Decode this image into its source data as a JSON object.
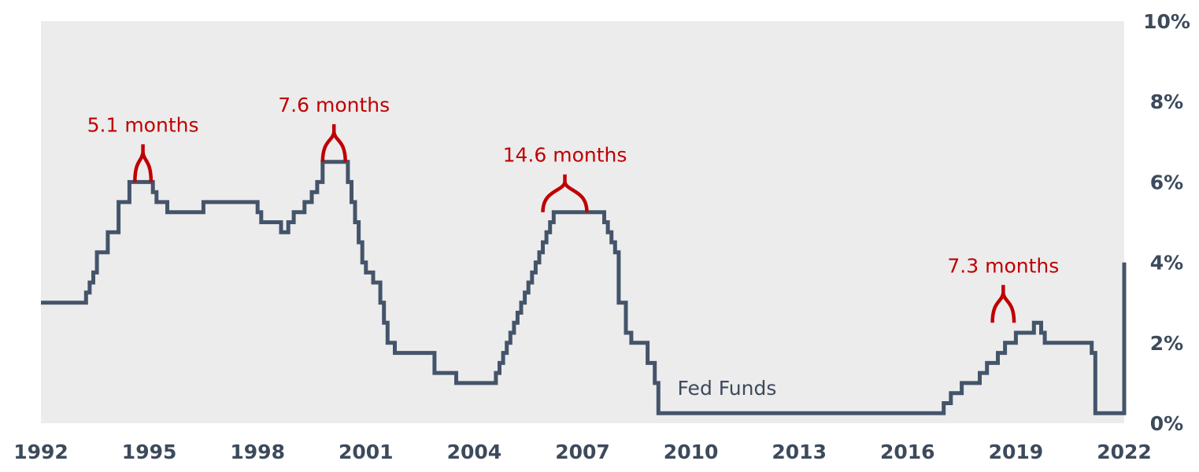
{
  "chart_data": {
    "type": "line",
    "line_shape": "step",
    "title": "",
    "xlabel": "",
    "ylabel": "",
    "xlim": [
      1992,
      2022
    ],
    "ylim": [
      0,
      10
    ],
    "x_ticks": [
      "1992",
      "1995",
      "1998",
      "2001",
      "2004",
      "2007",
      "2010",
      "2013",
      "2016",
      "2019",
      "2022"
    ],
    "y_ticks": [
      "0%",
      "2%",
      "4%",
      "6%",
      "8%",
      "10%"
    ],
    "y_axis_side": "right",
    "grid": false,
    "background": "#ececec",
    "series": [
      {
        "name": "Fed Funds",
        "color": "#44546a",
        "x": [
          1992.0,
          1993.25,
          1993.35,
          1993.45,
          1993.55,
          1993.85,
          1994.15,
          1994.45,
          1994.75,
          1995.1,
          1995.2,
          1995.5,
          1996.5,
          1997.9,
          1998.0,
          1998.1,
          1998.65,
          1998.85,
          1999.0,
          1999.3,
          1999.5,
          1999.65,
          1999.8,
          2000.4,
          2000.5,
          2000.6,
          2000.7,
          2000.8,
          2000.9,
          2001.0,
          2001.2,
          2001.4,
          2001.5,
          2001.6,
          2001.8,
          2002.9,
          2003.5,
          2004.5,
          2004.6,
          2004.7,
          2004.8,
          2004.9,
          2005.0,
          2005.1,
          2005.2,
          2005.3,
          2005.4,
          2005.5,
          2005.6,
          2005.7,
          2005.8,
          2005.9,
          2006.0,
          2006.1,
          2006.2,
          2006.3,
          2006.4,
          2006.5,
          2007.6,
          2007.7,
          2007.8,
          2007.9,
          2008.0,
          2008.2,
          2008.35,
          2008.5,
          2008.8,
          2009.0,
          2009.1,
          2016.0,
          2017.0,
          2017.2,
          2017.5,
          2018.0,
          2018.2,
          2018.5,
          2018.7,
          2019.0,
          2019.5,
          2019.6,
          2019.7,
          2019.8,
          2021.1,
          2021.2,
          2021.9,
          2022.0,
          2022.1,
          2022.2,
          2022.35,
          2022.5,
          2022.65,
          2022.75
        ],
        "y": [
          3.0,
          3.25,
          3.5,
          3.75,
          4.25,
          4.75,
          5.5,
          6.0,
          6.0,
          5.75,
          5.5,
          5.25,
          5.5,
          5.5,
          5.25,
          5.0,
          4.75,
          5.0,
          5.25,
          5.5,
          5.75,
          6.0,
          6.5,
          6.5,
          6.0,
          5.5,
          5.0,
          4.5,
          4.0,
          3.75,
          3.5,
          3.0,
          2.5,
          2.0,
          1.75,
          1.25,
          1.0,
          1.0,
          1.25,
          1.5,
          1.75,
          2.0,
          2.25,
          2.5,
          2.75,
          3.0,
          3.25,
          3.5,
          3.75,
          4.0,
          4.25,
          4.5,
          4.75,
          5.0,
          5.25,
          5.25,
          5.25,
          5.25,
          5.0,
          4.75,
          4.5,
          4.25,
          3.0,
          2.25,
          2.0,
          2.0,
          1.5,
          1.0,
          0.25,
          0.25,
          0.5,
          0.75,
          1.0,
          1.25,
          1.5,
          1.75,
          2.0,
          2.25,
          2.5,
          2.5,
          2.25,
          2.0,
          1.75,
          0.25,
          0.25,
          0.5,
          1.0,
          1.75,
          2.5,
          3.25,
          4.0,
          4.0
        ]
      }
    ],
    "series_label": {
      "text": "Fed Funds",
      "x": 2011.0,
      "y": 0.55
    },
    "annotations": [
      {
        "text": "5.1 months",
        "x_start": 1994.6,
        "x_end": 1995.05,
        "y": 6.0,
        "color": "#c00000"
      },
      {
        "text": "7.6 months",
        "x_start": 1999.8,
        "x_end": 2000.43,
        "y": 6.5,
        "color": "#c00000"
      },
      {
        "text": "14.6 months",
        "x_start": 2005.9,
        "x_end": 2007.12,
        "y": 5.25,
        "color": "#c00000"
      },
      {
        "text": "7.3 months",
        "x_start": 2018.35,
        "x_end": 2018.95,
        "y": 2.5,
        "color": "#c00000"
      }
    ]
  }
}
